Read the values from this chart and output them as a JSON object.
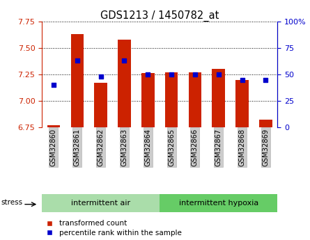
{
  "title": "GDS1213 / 1450782_at",
  "samples": [
    "GSM32860",
    "GSM32861",
    "GSM32862",
    "GSM32863",
    "GSM32864",
    "GSM32865",
    "GSM32866",
    "GSM32867",
    "GSM32868",
    "GSM32869"
  ],
  "transformed_count": [
    6.77,
    7.63,
    7.17,
    7.58,
    7.26,
    7.27,
    7.27,
    7.3,
    7.2,
    6.82
  ],
  "percentile_rank": [
    40,
    63,
    48,
    63,
    50,
    50,
    50,
    50,
    45,
    45
  ],
  "ylim_left": [
    6.75,
    7.75
  ],
  "ylim_right": [
    0,
    100
  ],
  "yticks_left": [
    6.75,
    7.0,
    7.25,
    7.5,
    7.75
  ],
  "yticks_right": [
    0,
    25,
    50,
    75,
    100
  ],
  "ytick_labels_right": [
    "0",
    "25",
    "50",
    "75",
    "100%"
  ],
  "group1_label": "intermittent air",
  "group2_label": "intermittent hypoxia",
  "stress_label": "stress",
  "legend_red_label": "transformed count",
  "legend_blue_label": "percentile rank within the sample",
  "bar_color": "#cc2200",
  "marker_color": "#0000cc",
  "bar_bottom": 6.75,
  "group1_bg": "#aaddaa",
  "group2_bg": "#66cc66",
  "tick_label_bg": "#cccccc",
  "left_axis_color": "#cc2200",
  "right_axis_color": "#0000cc",
  "bar_width": 0.55
}
